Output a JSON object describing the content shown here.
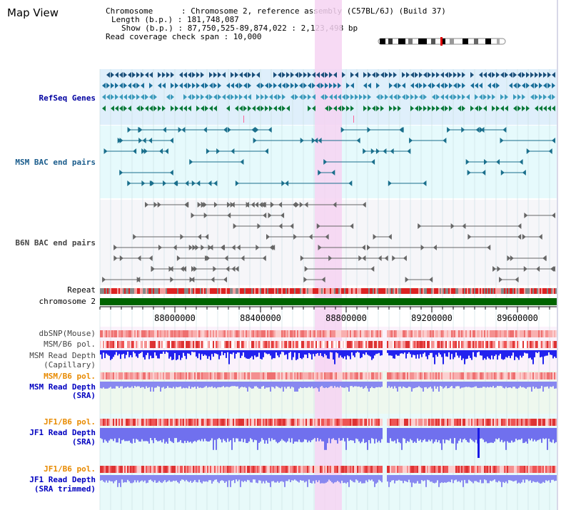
{
  "title": "Map View",
  "info": {
    "chromosome": "Chromosome      : Chromosome 2, reference assembly (C57BL/6J) (Build 37)",
    "length": "Length (b.p.) : 181,748,087",
    "show": "Show (b.p.) : 87,750,525-89,874,022 : 2,123,498 bp",
    "coverage": "Read coverage check span : 10,000"
  },
  "axis": {
    "ticks": [
      "88000000",
      "88400000",
      "88800000",
      "89200000",
      "89600000"
    ]
  },
  "tracks": [
    {
      "id": "refseq",
      "label": "RefSeq Genes",
      "color": "#0000a0"
    },
    {
      "id": "msm-bac",
      "label": "MSM BAC end pairs",
      "color": "#1a5c8c"
    },
    {
      "id": "b6n-bac",
      "label": "B6N BAC end pairs",
      "color": "#444444"
    },
    {
      "id": "repeat",
      "label": "Repeat",
      "color": "#000000"
    },
    {
      "id": "chromosome",
      "label": "chromosome 2",
      "color": "#000000"
    },
    {
      "id": "dbsnp",
      "label": "dbSNP(Mouse)",
      "color": "#444444"
    },
    {
      "id": "msm-b6-pol",
      "label": "MSM/B6 pol.",
      "color": "#444444"
    },
    {
      "id": "msm-depth-cap-1",
      "label": "MSM Read Depth",
      "color": "#444444"
    },
    {
      "id": "msm-depth-cap-2",
      "label": "(Capillary)",
      "color": "#444444"
    },
    {
      "id": "msm-b6-pol-sra",
      "label": "MSM/B6 pol.",
      "color": "#e88a00"
    },
    {
      "id": "msm-depth-sra-1",
      "label": "MSM Read Depth",
      "color": "#0000c0"
    },
    {
      "id": "msm-depth-sra-2",
      "label": "(SRA)",
      "color": "#0000c0"
    },
    {
      "id": "jf1-b6-pol",
      "label": "JF1/B6 pol.",
      "color": "#e88a00"
    },
    {
      "id": "jf1-depth-sra-1",
      "label": "JF1 Read Depth",
      "color": "#0000c0"
    },
    {
      "id": "jf1-depth-sra-2",
      "label": "(SRA)",
      "color": "#0000c0"
    },
    {
      "id": "jf1-b6-pol-trim",
      "label": "JF1/B6 pol.",
      "color": "#e88a00"
    },
    {
      "id": "jf1-depth-trim-1",
      "label": "JF1 Read Depth",
      "color": "#0000c0"
    },
    {
      "id": "jf1-depth-trim-2",
      "label": "(SRA trimmed)",
      "color": "#0000c0"
    }
  ],
  "colors": {
    "refseq_bg": "#dfeffb",
    "msm_bg": "#e6fafc",
    "b6n_bg": "#f5f5f8",
    "highlight": "#f6d4f2",
    "chromosome": "#006400",
    "depth_dark": "#1a1ae6",
    "depth_light": "#8888f0",
    "pol": "#ee4444"
  }
}
